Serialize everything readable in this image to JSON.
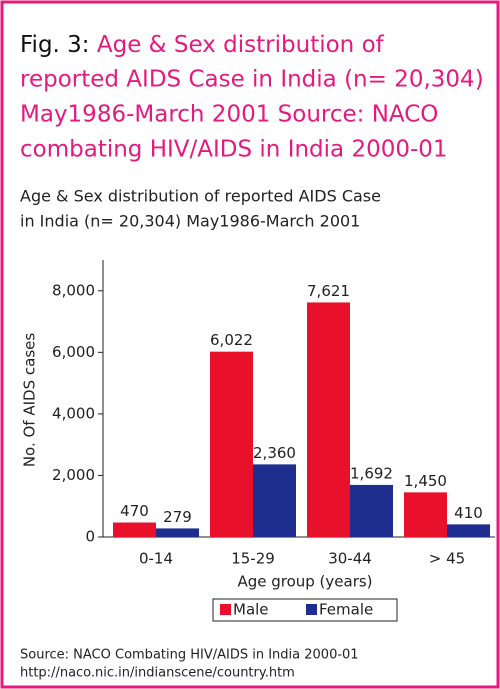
{
  "figure_label": "Fig. 3:",
  "caption": [
    "Age & Sex distribution of",
    "reported AIDS Case in India (n= 20,304)",
    "May1986-March 2001 Source: NACO",
    "combating HIV/AIDS in India 2000-01"
  ],
  "chart_data": {
    "type": "bar",
    "title": [
      "Age & Sex distribution of reported AIDS Case",
      "in India (n= 20,304) May1986-March 2001"
    ],
    "x_label": "Age group (years)",
    "y_label": "No. Of AIDS cases",
    "categories": [
      "0-14",
      "15-29",
      "30-44",
      "> 45"
    ],
    "series": [
      {
        "name": "Male",
        "color": "#e8102a",
        "values": [
          470,
          6022,
          7621,
          1450
        ],
        "value_labels": [
          "470",
          "6,022",
          "7,621",
          "1,450"
        ]
      },
      {
        "name": "Female",
        "color": "#1f2d8f",
        "values": [
          279,
          2360,
          1692,
          410
        ],
        "value_labels": [
          "279",
          "2,360",
          "1,692",
          "410"
        ]
      }
    ],
    "ylim": [
      0,
      9000
    ],
    "yticks": [
      0,
      {
        "value": 2000,
        "label": "2,000"
      },
      {
        "value": 4000,
        "label": "4,000"
      },
      {
        "value": 6000,
        "label": "6,000"
      },
      {
        "value": 8000,
        "label": "8,000"
      }
    ],
    "legend": "bottom"
  },
  "source": [
    "Source: NACO Combating HIV/AIDS in India 2000-01",
    "http://naco.nic.in/indianscene/country.htm"
  ]
}
